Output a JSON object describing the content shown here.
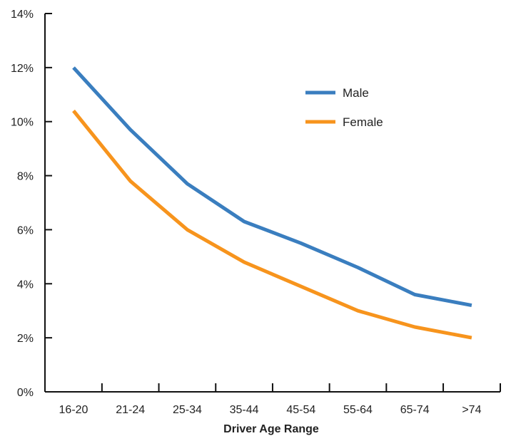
{
  "chart_data": {
    "type": "line",
    "categories": [
      "16-20",
      "21-24",
      "25-34",
      "35-44",
      "45-54",
      "55-64",
      "65-74",
      ">74"
    ],
    "series": [
      {
        "name": "Male",
        "color": "#3a7ebf",
        "values": [
          12.0,
          9.7,
          7.7,
          6.3,
          5.5,
          4.6,
          3.6,
          3.2
        ]
      },
      {
        "name": "Female",
        "color": "#f7941d",
        "values": [
          10.4,
          7.8,
          6.0,
          4.8,
          3.9,
          3.0,
          2.4,
          2.0
        ]
      }
    ],
    "xlabel": "Driver Age Range",
    "ylabel": "",
    "ylim": [
      0,
      14
    ],
    "yticks": [
      0,
      2,
      4,
      6,
      8,
      10,
      12,
      14
    ],
    "ytick_labels": [
      "0%",
      "2%",
      "4%",
      "6%",
      "8%",
      "10%",
      "12%",
      "14%"
    ],
    "grid": false,
    "legend_position": "top-right"
  }
}
